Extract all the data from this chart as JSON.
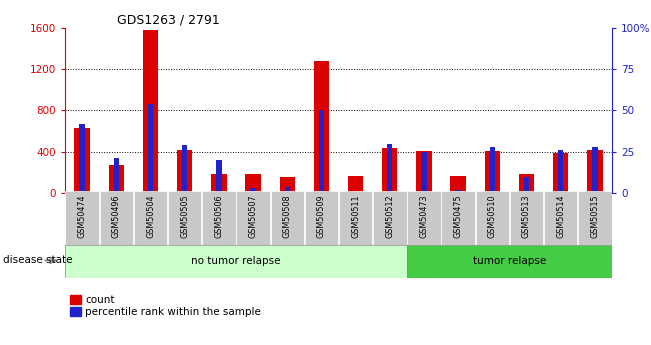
{
  "title": "GDS1263 / 2791",
  "samples": [
    "GSM50474",
    "GSM50496",
    "GSM50504",
    "GSM50505",
    "GSM50506",
    "GSM50507",
    "GSM50508",
    "GSM50509",
    "GSM50511",
    "GSM50512",
    "GSM50473",
    "GSM50475",
    "GSM50510",
    "GSM50513",
    "GSM50514",
    "GSM50515"
  ],
  "counts": [
    630,
    270,
    1580,
    420,
    190,
    185,
    160,
    1280,
    170,
    440,
    405,
    165,
    405,
    185,
    385,
    415
  ],
  "percentiles": [
    42,
    21,
    54,
    29,
    20,
    3,
    4,
    50,
    1,
    30,
    25,
    2,
    28,
    10,
    26,
    28
  ],
  "no_tumor_count": 10,
  "tumor_count": 6,
  "bar_color_red": "#dd0000",
  "bar_color_blue": "#2222cc",
  "bg_color_no_tumor": "#ccffcc",
  "bg_color_tumor": "#44cc44",
  "tick_bg": "#c8c8c8",
  "left_ylim": [
    0,
    1600
  ],
  "right_ylim": [
    0,
    100
  ],
  "left_yticks": [
    0,
    400,
    800,
    1200,
    1600
  ],
  "right_yticks": [
    0,
    25,
    50,
    75,
    100
  ],
  "right_yticklabels": [
    "0",
    "25",
    "50",
    "75",
    "100%"
  ],
  "legend_count": "count",
  "legend_pct": "percentile rank within the sample",
  "disease_state_label": "disease state",
  "no_tumor_label": "no tumor relapse",
  "tumor_label": "tumor relapse"
}
